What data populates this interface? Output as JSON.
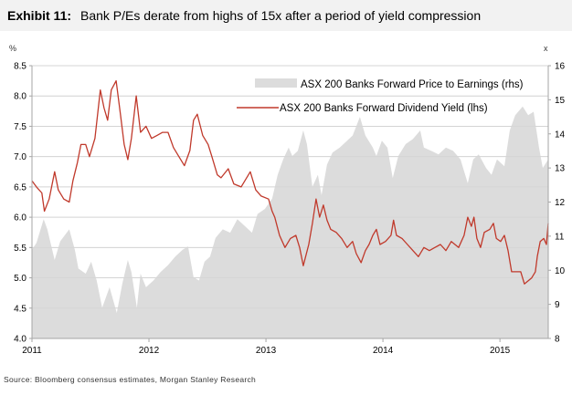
{
  "chart_data": {
    "type": "line",
    "title_prefix": "Exhibit 11:",
    "title": "Bank P/Es derate from highs of 15x after a period of yield compression",
    "source": "Source: Bloomberg consensus estimates, Morgan Stanley Research",
    "ylabel_left": "%",
    "ylabel_right": "x",
    "xlim": [
      2011,
      2015.413
    ],
    "ylim_left": [
      4.0,
      8.5
    ],
    "ylim_right": [
      8,
      16
    ],
    "x_ticks": [
      "2011",
      "2012",
      "2013",
      "2014",
      "2015"
    ],
    "y_left_ticks": [
      "4.0",
      "4.5",
      "5.0",
      "5.5",
      "6.0",
      "6.5",
      "7.0",
      "7.5",
      "8.0",
      "8.5"
    ],
    "y_right_ticks": [
      "8",
      "9",
      "10",
      "11",
      "12",
      "13",
      "14",
      "15",
      "16"
    ],
    "grid": true,
    "legend_position": "top-right",
    "colors": {
      "pe_area": "#dcdcdc",
      "yield_line": "#c0392b",
      "grid": "#d9d9d9",
      "axis": "#a6a6a6",
      "title_bg": "#f2f2f2"
    },
    "series": [
      {
        "name": "ASX 200 Banks Forward Price to Earnings (rhs)",
        "type": "area",
        "axis": "right",
        "points": [
          [
            2011.0,
            10.6
          ],
          [
            2011.038,
            10.8
          ],
          [
            2011.1,
            11.5
          ],
          [
            2011.131,
            11.2
          ],
          [
            2011.194,
            10.3
          ],
          [
            2011.241,
            10.85
          ],
          [
            2011.319,
            11.2
          ],
          [
            2011.366,
            10.6
          ],
          [
            2011.397,
            10.05
          ],
          [
            2011.459,
            9.9
          ],
          [
            2011.506,
            10.25
          ],
          [
            2011.553,
            9.7
          ],
          [
            2011.6,
            8.9
          ],
          [
            2011.663,
            9.5
          ],
          [
            2011.725,
            8.75
          ],
          [
            2011.772,
            9.6
          ],
          [
            2011.819,
            10.3
          ],
          [
            2011.85,
            9.95
          ],
          [
            2011.897,
            8.9
          ],
          [
            2011.928,
            9.9
          ],
          [
            2011.975,
            9.5
          ],
          [
            2012.038,
            9.7
          ],
          [
            2012.1,
            9.95
          ],
          [
            2012.163,
            10.15
          ],
          [
            2012.225,
            10.4
          ],
          [
            2012.288,
            10.6
          ],
          [
            2012.334,
            10.7
          ],
          [
            2012.381,
            9.8
          ],
          [
            2012.428,
            9.7
          ],
          [
            2012.475,
            10.25
          ],
          [
            2012.522,
            10.4
          ],
          [
            2012.569,
            10.95
          ],
          [
            2012.631,
            11.2
          ],
          [
            2012.694,
            11.1
          ],
          [
            2012.756,
            11.5
          ],
          [
            2012.819,
            11.3
          ],
          [
            2012.881,
            11.1
          ],
          [
            2012.928,
            11.65
          ],
          [
            2012.991,
            11.8
          ],
          [
            2013.053,
            12.1
          ],
          [
            2013.1,
            12.8
          ],
          [
            2013.147,
            13.25
          ],
          [
            2013.194,
            13.6
          ],
          [
            2013.225,
            13.35
          ],
          [
            2013.272,
            13.5
          ],
          [
            2013.319,
            14.1
          ],
          [
            2013.35,
            13.7
          ],
          [
            2013.397,
            12.45
          ],
          [
            2013.444,
            12.8
          ],
          [
            2013.475,
            12.2
          ],
          [
            2013.522,
            13.1
          ],
          [
            2013.569,
            13.45
          ],
          [
            2013.631,
            13.6
          ],
          [
            2013.694,
            13.8
          ],
          [
            2013.741,
            13.95
          ],
          [
            2013.803,
            14.5
          ],
          [
            2013.85,
            13.95
          ],
          [
            2013.913,
            13.6
          ],
          [
            2013.944,
            13.35
          ],
          [
            2013.991,
            13.8
          ],
          [
            2014.038,
            13.6
          ],
          [
            2014.084,
            12.7
          ],
          [
            2014.131,
            13.35
          ],
          [
            2014.194,
            13.7
          ],
          [
            2014.256,
            13.85
          ],
          [
            2014.319,
            14.1
          ],
          [
            2014.35,
            13.6
          ],
          [
            2014.413,
            13.5
          ],
          [
            2014.475,
            13.4
          ],
          [
            2014.538,
            13.6
          ],
          [
            2014.6,
            13.5
          ],
          [
            2014.663,
            13.25
          ],
          [
            2014.725,
            12.55
          ],
          [
            2014.772,
            13.25
          ],
          [
            2014.819,
            13.4
          ],
          [
            2014.881,
            13.0
          ],
          [
            2014.928,
            12.8
          ],
          [
            2014.975,
            13.25
          ],
          [
            2015.038,
            13.05
          ],
          [
            2015.084,
            14.1
          ],
          [
            2015.131,
            14.55
          ],
          [
            2015.194,
            14.8
          ],
          [
            2015.241,
            14.55
          ],
          [
            2015.288,
            14.65
          ],
          [
            2015.334,
            13.6
          ],
          [
            2015.366,
            13.0
          ],
          [
            2015.413,
            13.25
          ]
        ]
      },
      {
        "name": "ASX 200 Banks Forward Dividend Yield (lhs)",
        "type": "line",
        "axis": "left",
        "points": [
          [
            2011.0,
            6.6
          ],
          [
            2011.038,
            6.5
          ],
          [
            2011.084,
            6.4
          ],
          [
            2011.106,
            6.1
          ],
          [
            2011.147,
            6.3
          ],
          [
            2011.194,
            6.75
          ],
          [
            2011.225,
            6.45
          ],
          [
            2011.272,
            6.3
          ],
          [
            2011.319,
            6.25
          ],
          [
            2011.35,
            6.6
          ],
          [
            2011.388,
            6.9
          ],
          [
            2011.419,
            7.2
          ],
          [
            2011.459,
            7.2
          ],
          [
            2011.491,
            7.0
          ],
          [
            2011.538,
            7.3
          ],
          [
            2011.584,
            8.1
          ],
          [
            2011.616,
            7.8
          ],
          [
            2011.647,
            7.6
          ],
          [
            2011.678,
            8.1
          ],
          [
            2011.719,
            8.25
          ],
          [
            2011.756,
            7.7
          ],
          [
            2011.788,
            7.2
          ],
          [
            2011.819,
            6.95
          ],
          [
            2011.85,
            7.3
          ],
          [
            2011.891,
            8.0
          ],
          [
            2011.928,
            7.4
          ],
          [
            2011.975,
            7.5
          ],
          [
            2012.022,
            7.3
          ],
          [
            2012.069,
            7.35
          ],
          [
            2012.116,
            7.4
          ],
          [
            2012.163,
            7.4
          ],
          [
            2012.209,
            7.15
          ],
          [
            2012.256,
            7.0
          ],
          [
            2012.303,
            6.85
          ],
          [
            2012.35,
            7.1
          ],
          [
            2012.381,
            7.6
          ],
          [
            2012.413,
            7.7
          ],
          [
            2012.459,
            7.35
          ],
          [
            2012.506,
            7.2
          ],
          [
            2012.538,
            7.0
          ],
          [
            2012.584,
            6.7
          ],
          [
            2012.616,
            6.65
          ],
          [
            2012.678,
            6.8
          ],
          [
            2012.725,
            6.55
          ],
          [
            2012.788,
            6.5
          ],
          [
            2012.866,
            6.75
          ],
          [
            2012.913,
            6.45
          ],
          [
            2012.959,
            6.35
          ],
          [
            2013.022,
            6.3
          ],
          [
            2013.053,
            6.1
          ],
          [
            2013.075,
            6.0
          ],
          [
            2013.116,
            5.7
          ],
          [
            2013.163,
            5.5
          ],
          [
            2013.209,
            5.65
          ],
          [
            2013.256,
            5.7
          ],
          [
            2013.288,
            5.5
          ],
          [
            2013.319,
            5.2
          ],
          [
            2013.366,
            5.55
          ],
          [
            2013.397,
            5.9
          ],
          [
            2013.428,
            6.3
          ],
          [
            2013.459,
            6.0
          ],
          [
            2013.491,
            6.2
          ],
          [
            2013.522,
            5.95
          ],
          [
            2013.553,
            5.8
          ],
          [
            2013.6,
            5.75
          ],
          [
            2013.647,
            5.65
          ],
          [
            2013.694,
            5.5
          ],
          [
            2013.741,
            5.6
          ],
          [
            2013.772,
            5.4
          ],
          [
            2013.813,
            5.25
          ],
          [
            2013.85,
            5.45
          ],
          [
            2013.881,
            5.55
          ],
          [
            2013.913,
            5.7
          ],
          [
            2013.944,
            5.8
          ],
          [
            2013.975,
            5.55
          ],
          [
            2014.022,
            5.6
          ],
          [
            2014.069,
            5.7
          ],
          [
            2014.091,
            5.95
          ],
          [
            2014.116,
            5.7
          ],
          [
            2014.163,
            5.65
          ],
          [
            2014.209,
            5.55
          ],
          [
            2014.256,
            5.45
          ],
          [
            2014.303,
            5.35
          ],
          [
            2014.35,
            5.5
          ],
          [
            2014.397,
            5.45
          ],
          [
            2014.444,
            5.5
          ],
          [
            2014.491,
            5.55
          ],
          [
            2014.538,
            5.45
          ],
          [
            2014.584,
            5.6
          ],
          [
            2014.647,
            5.5
          ],
          [
            2014.694,
            5.7
          ],
          [
            2014.725,
            6.0
          ],
          [
            2014.756,
            5.85
          ],
          [
            2014.778,
            6.0
          ],
          [
            2014.803,
            5.65
          ],
          [
            2014.834,
            5.5
          ],
          [
            2014.866,
            5.75
          ],
          [
            2014.913,
            5.8
          ],
          [
            2014.944,
            5.9
          ],
          [
            2014.969,
            5.65
          ],
          [
            2015.006,
            5.6
          ],
          [
            2015.038,
            5.7
          ],
          [
            2015.069,
            5.45
          ],
          [
            2015.1,
            5.1
          ],
          [
            2015.147,
            5.1
          ],
          [
            2015.178,
            5.1
          ],
          [
            2015.209,
            4.9
          ],
          [
            2015.241,
            4.95
          ],
          [
            2015.272,
            5.0
          ],
          [
            2015.303,
            5.1
          ],
          [
            2015.319,
            5.35
          ],
          [
            2015.344,
            5.6
          ],
          [
            2015.375,
            5.65
          ],
          [
            2015.397,
            5.55
          ],
          [
            2015.413,
            5.9
          ]
        ]
      }
    ]
  }
}
